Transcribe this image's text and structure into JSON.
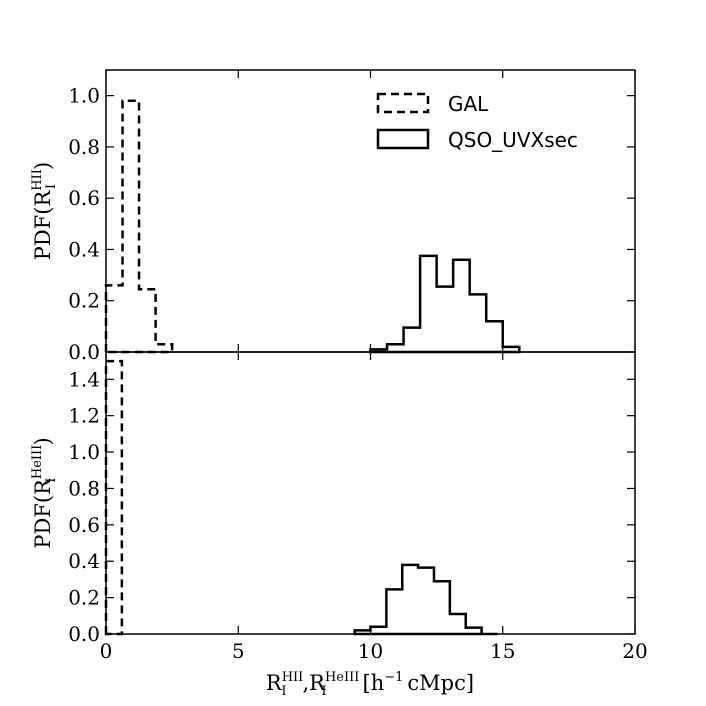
{
  "chart_data": [
    {
      "type": "histogram",
      "panel": "top",
      "xlim": [
        0,
        20
      ],
      "ylim": [
        0,
        1.1
      ],
      "yticks": [
        0.0,
        0.2,
        0.4,
        0.6,
        0.8,
        1.0
      ],
      "ylabel": {
        "main": "PDF(R",
        "sup": "HII",
        "sub": "I",
        "end": ")"
      },
      "series": [
        {
          "name": "GAL",
          "style": "dashed",
          "edges": [
            0,
            0.625,
            1.25,
            1.875,
            2.5
          ],
          "values": [
            0.26,
            0.98,
            0.245,
            0.03
          ]
        },
        {
          "name": "QSO_UVXsec",
          "style": "solid",
          "edges": [
            10,
            10.625,
            11.25,
            11.875,
            12.5,
            13.125,
            13.75,
            14.375,
            15.0,
            15.625
          ],
          "values": [
            0.01,
            0.03,
            0.095,
            0.375,
            0.255,
            0.36,
            0.225,
            0.12,
            0.02
          ]
        }
      ]
    },
    {
      "type": "histogram",
      "panel": "bottom",
      "xlim": [
        0,
        20
      ],
      "ylim": [
        0,
        1.55
      ],
      "yticks": [
        0.0,
        0.2,
        0.4,
        0.6,
        0.8,
        1.0,
        1.2,
        1.4
      ],
      "xticks": [
        0,
        5,
        10,
        15,
        20
      ],
      "ylabel": {
        "main": "PDF(R",
        "sup": "HeIII",
        "sub": "I",
        "end": ")"
      },
      "series": [
        {
          "name": "GAL",
          "style": "dashed",
          "edges": [
            0,
            0.6
          ],
          "values": [
            1.5
          ]
        },
        {
          "name": "QSO_UVXsec",
          "style": "solid",
          "edges": [
            9.4,
            10.0,
            10.6,
            11.2,
            11.8,
            12.4,
            13.0,
            13.6,
            14.2,
            14.8
          ],
          "values": [
            0.02,
            0.04,
            0.245,
            0.38,
            0.365,
            0.29,
            0.11,
            0.035,
            0.0
          ]
        }
      ]
    }
  ],
  "xlabel": {
    "r1": "R",
    "r1sup": "HII",
    "r1sub": "I",
    "comma": ",",
    "r2": "R",
    "r2sup": "HeIII",
    "r2sub": "I",
    "unit_open": "[h",
    "unit_exp": "−1",
    "unit_close": "cMpc]"
  },
  "legend": [
    {
      "label": "GAL",
      "style": "dashed"
    },
    {
      "label": "QSO_UVXsec",
      "style": "solid"
    }
  ]
}
